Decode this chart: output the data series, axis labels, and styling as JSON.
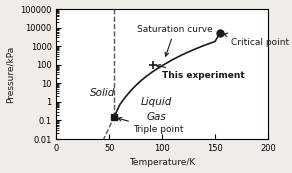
{
  "title": "",
  "xlabel": "Temperature/K",
  "ylabel": "Pressure/kPa",
  "xlim": [
    0,
    200
  ],
  "ylim_log": [
    0.01,
    100000
  ],
  "background_color": "#f0ede8",
  "plot_bg_color": "#ffffff",
  "triple_point": [
    54.4,
    0.15
  ],
  "critical_point": [
    154.6,
    5043
  ],
  "experiment_point": [
    91,
    100
  ],
  "saturation_curve_T": [
    54.4,
    60,
    65,
    70,
    75,
    80,
    85,
    90,
    95,
    100,
    110,
    120,
    130,
    140,
    150,
    154.6
  ],
  "saturation_curve_P": [
    0.15,
    0.73,
    1.76,
    3.84,
    7.64,
    14.0,
    23.8,
    38.6,
    60.0,
    90.0,
    191,
    370,
    660,
    1120,
    1800,
    5043
  ],
  "solid_liquid_T": [
    54.4,
    54.4
  ],
  "solid_liquid_P": [
    0.15,
    100000
  ],
  "solid_gas_T": [
    20,
    54.4
  ],
  "solid_gas_P": [
    1e-05,
    0.15
  ],
  "label_solid": "Solid",
  "label_liquid": "Liquid",
  "label_gas": "Gas",
  "label_saturation": "Saturation curve",
  "label_critical": "Critical point",
  "label_triple": "Triple point",
  "label_experiment": "This experiment",
  "solid_T": [
    30,
    45
  ],
  "solid_P_log": [
    1.2,
    1.2
  ],
  "liquid_T": [
    78,
    85
  ],
  "liquid_P_log": [
    3.0,
    3.0
  ],
  "gas_T": [
    75,
    85
  ],
  "gas_P_log": [
    0.3,
    0.3
  ],
  "line_color": "#1a1a1a",
  "dashed_color": "#555555",
  "point_color": "#1a1a1a",
  "text_color": "#1a1a1a",
  "font_size_label": 6.5,
  "font_size_axis": 6.5,
  "font_size_region": 7.5,
  "tick_labelsize": 6
}
